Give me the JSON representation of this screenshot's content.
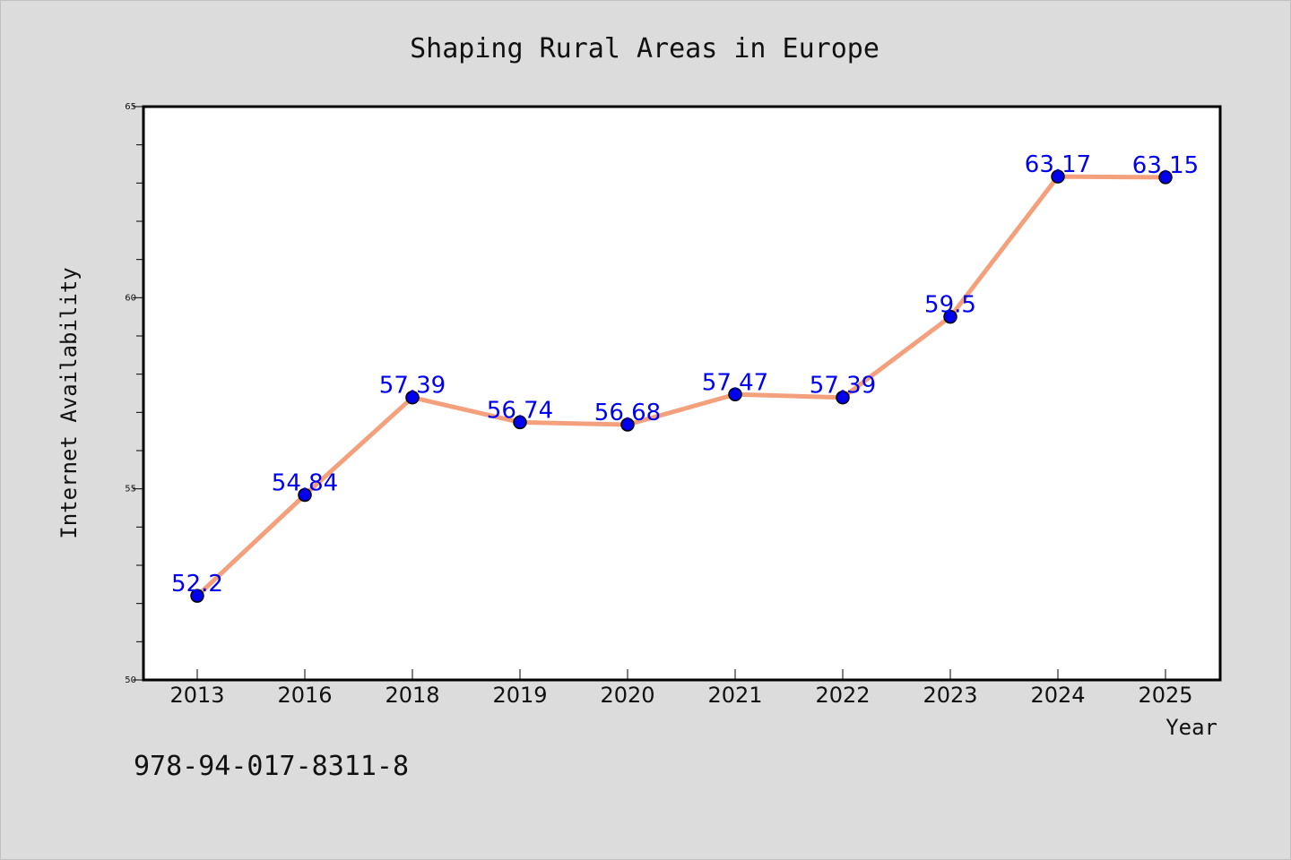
{
  "chart_data": {
    "type": "line",
    "title": "Shaping Rural Areas in Europe",
    "xlabel": "Year",
    "ylabel": "Internet Availability",
    "categories": [
      "2013",
      "2016",
      "2018",
      "2019",
      "2020",
      "2021",
      "2022",
      "2023",
      "2024",
      "2025"
    ],
    "series": [
      {
        "values": [
          52.2,
          54.84,
          57.39,
          56.74,
          56.68,
          57.47,
          57.39,
          59.5,
          63.17,
          63.15
        ]
      }
    ],
    "data_labels": [
      "52.2",
      "54.84",
      "57.39",
      "56.74",
      "56.68",
      "57.47",
      "57.39",
      "59.5",
      "63.17",
      "63.15"
    ],
    "ylim": [
      50,
      65
    ],
    "yticks": [
      "50",
      "55",
      "60",
      "65"
    ],
    "grid": false,
    "legend": "none",
    "colors": {
      "line": "#f4a07c",
      "marker": "#0000ee",
      "data_label": "#0000ee",
      "background": "#dcdcdc",
      "plot_background": "#ffffff"
    }
  },
  "footer": {
    "isbn": "978-94-017-8311-8"
  }
}
